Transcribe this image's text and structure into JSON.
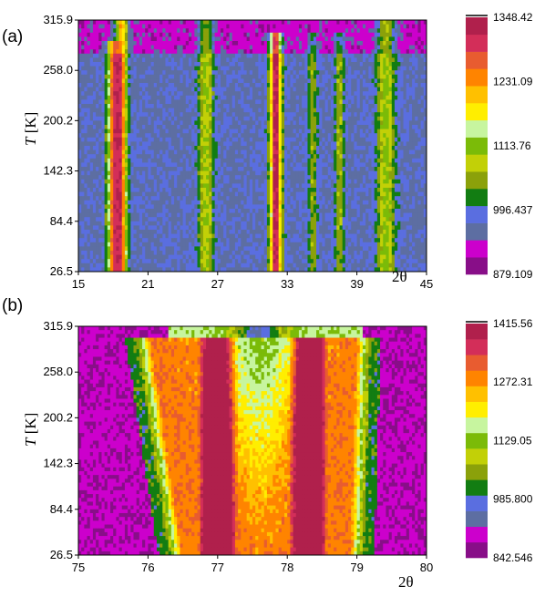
{
  "chart_data": [
    {
      "type": "heatmap",
      "panel_label": "(a)",
      "xlabel": "2θ",
      "ylabel_var": "T",
      "ylabel_unit": " [K]",
      "x_ticks": [
        "15",
        "21",
        "27",
        "33",
        "39",
        "45"
      ],
      "y_ticks": [
        "26.5",
        "84.4",
        "142.3",
        "200.2",
        "258.0",
        "315.9"
      ],
      "xlim": [
        15,
        45
      ],
      "ylim": [
        26.5,
        315.9
      ],
      "colorbar": {
        "ticks": [
          "1348.42",
          "1231.09",
          "1113.76",
          "996.437",
          "879.109"
        ],
        "range": [
          879.109,
          1348.42
        ]
      },
      "background_level": 0.1,
      "top_band": {
        "below_T": 278,
        "level": 0.14
      },
      "peaks": [
        {
          "x": 18.0,
          "width": 0.35,
          "amp": 0.6,
          "tmin": 26.5,
          "tmax": 290
        },
        {
          "x": 18.7,
          "width": 0.35,
          "amp": 0.62,
          "tmin": 26.5,
          "tmax": 315.9
        },
        {
          "x": 26.0,
          "width": 0.45,
          "amp": 0.28,
          "tmin": 26.5,
          "tmax": 315.9
        },
        {
          "x": 32.0,
          "width": 0.35,
          "amp": 0.8,
          "tmin": 26.5,
          "tmax": 300
        },
        {
          "x": 35.2,
          "width": 0.3,
          "amp": 0.18,
          "tmin": 26.5,
          "tmax": 300
        },
        {
          "x": 37.5,
          "width": 0.3,
          "amp": 0.2,
          "tmin": 26.5,
          "tmax": 300
        },
        {
          "x": 41.5,
          "width": 0.55,
          "amp": 0.3,
          "tmin": 26.5,
          "tmax": 315.9
        }
      ]
    },
    {
      "type": "heatmap",
      "panel_label": "(b)",
      "xlabel": "2θ",
      "ylabel_var": "T",
      "ylabel_unit": " [K]",
      "x_ticks": [
        "75",
        "76",
        "77",
        "78",
        "79",
        "80"
      ],
      "y_ticks": [
        "26.5",
        "84.4",
        "142.3",
        "200.2",
        "258.0",
        "315.9"
      ],
      "xlim": [
        75,
        80
      ],
      "ylim": [
        26.5,
        315.9
      ],
      "colorbar": {
        "ticks": [
          "1415.56",
          "1272.31",
          "1129.05",
          "985.800",
          "842.546"
        ],
        "range": [
          842.546,
          1415.56
        ]
      },
      "background_level": 0.08,
      "broad_peak": {
        "left_low": 76.5,
        "left_high": 76.0,
        "right_low": 78.9,
        "right_high": 79.0,
        "top_T": 300
      },
      "sub_peaks": [
        {
          "x": 77.0,
          "width": 0.25,
          "amp": 0.93
        },
        {
          "x": 78.3,
          "width": 0.25,
          "amp": 0.9
        }
      ],
      "central_minimum": {
        "x": 77.6,
        "level": 0.62
      }
    }
  ],
  "colors": {
    "palette": [
      "#880e88",
      "#cc00cc",
      "#5d6ea2",
      "#5a6ee0",
      "#127d12",
      "#8ba10a",
      "#c2d007",
      "#7bbb08",
      "#c7f59f",
      "#ffee00",
      "#ffc000",
      "#ff8400",
      "#e85c30",
      "#d32e59",
      "#b0204c"
    ]
  }
}
